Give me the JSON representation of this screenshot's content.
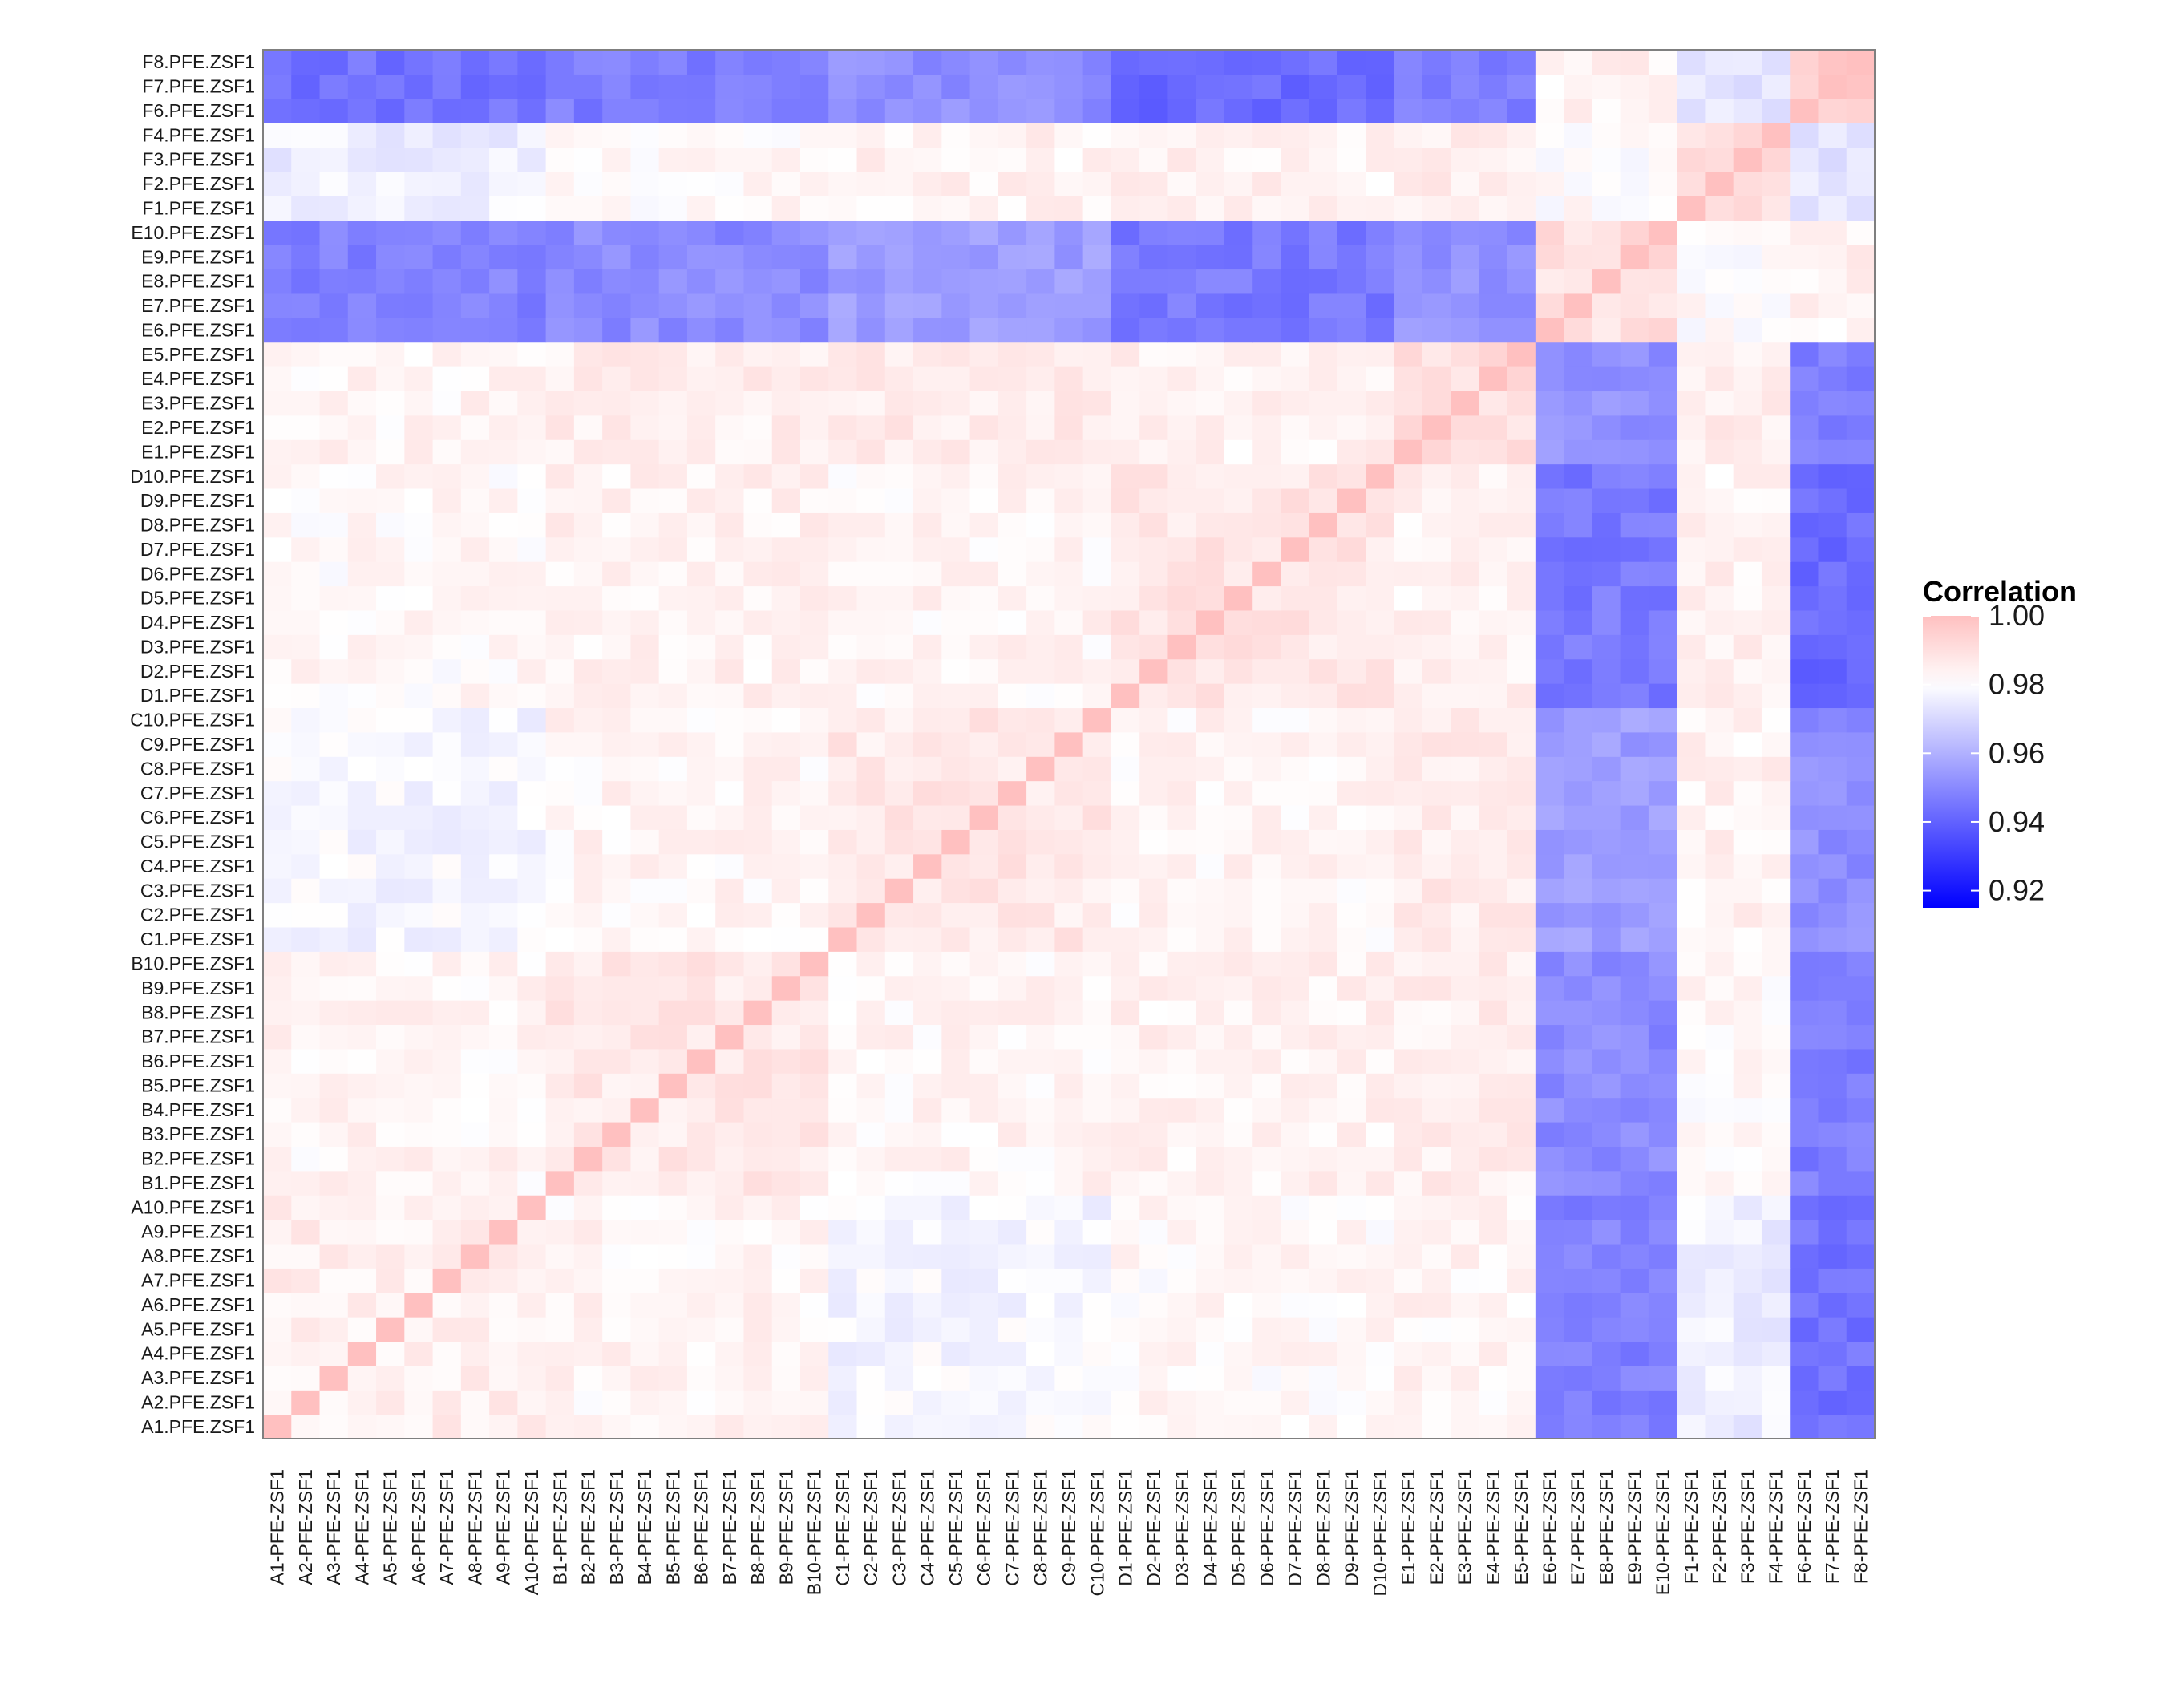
{
  "chart_data": {
    "type": "heatmap",
    "title": "",
    "xlabel": "",
    "ylabel": "",
    "labels": [
      "A1.PFE.ZSF1",
      "A2.PFE.ZSF1",
      "A3.PFE.ZSF1",
      "A4.PFE.ZSF1",
      "A5.PFE.ZSF1",
      "A6.PFE.ZSF1",
      "A7.PFE.ZSF1",
      "A8.PFE.ZSF1",
      "A9.PFE.ZSF1",
      "A10.PFE.ZSF1",
      "B1.PFE.ZSF1",
      "B2.PFE.ZSF1",
      "B3.PFE.ZSF1",
      "B4.PFE.ZSF1",
      "B5.PFE.ZSF1",
      "B6.PFE.ZSF1",
      "B7.PFE.ZSF1",
      "B8.PFE.ZSF1",
      "B9.PFE.ZSF1",
      "B10.PFE.ZSF1",
      "C1.PFE.ZSF1",
      "C2.PFE.ZSF1",
      "C3.PFE.ZSF1",
      "C4.PFE.ZSF1",
      "C5.PFE.ZSF1",
      "C6.PFE.ZSF1",
      "C7.PFE.ZSF1",
      "C8.PFE.ZSF1",
      "C9.PFE.ZSF1",
      "C10.PFE.ZSF1",
      "D1.PFE.ZSF1",
      "D2.PFE.ZSF1",
      "D3.PFE.ZSF1",
      "D4.PFE.ZSF1",
      "D5.PFE.ZSF1",
      "D6.PFE.ZSF1",
      "D7.PFE.ZSF1",
      "D8.PFE.ZSF1",
      "D9.PFE.ZSF1",
      "D10.PFE.ZSF1",
      "E1.PFE.ZSF1",
      "E2.PFE.ZSF1",
      "E3.PFE.ZSF1",
      "E4.PFE.ZSF1",
      "E5.PFE.ZSF1",
      "E6.PFE.ZSF1",
      "E7.PFE.ZSF1",
      "E8.PFE.ZSF1",
      "E9.PFE.ZSF1",
      "E10.PFE.ZSF1",
      "F1.PFE.ZSF1",
      "F2.PFE.ZSF1",
      "F3.PFE.ZSF1",
      "F4.PFE.ZSF1",
      "F6.PFE.ZSF1",
      "F7.PFE.ZSF1",
      "F8.PFE.ZSF1"
    ],
    "x_tick_labels": [
      "A1-PFE-ZSF1",
      "A2-PFE-ZSF1",
      "A3-PFE-ZSF1",
      "A4-PFE-ZSF1",
      "A5-PFE-ZSF1",
      "A6-PFE-ZSF1",
      "A7-PFE-ZSF1",
      "A8-PFE-ZSF1",
      "A9-PFE-ZSF1",
      "A10-PFE-ZSF1",
      "B1-PFE-ZSF1",
      "B2-PFE-ZSF1",
      "B3-PFE-ZSF1",
      "B4-PFE-ZSF1",
      "B5-PFE-ZSF1",
      "B6-PFE-ZSF1",
      "B7-PFE-ZSF1",
      "B8-PFE-ZSF1",
      "B9-PFE-ZSF1",
      "B10-PFE-ZSF1",
      "C1-PFE-ZSF1",
      "C2-PFE-ZSF1",
      "C3-PFE-ZSF1",
      "C4-PFE-ZSF1",
      "C5-PFE-ZSF1",
      "C6-PFE-ZSF1",
      "C7-PFE-ZSF1",
      "C8-PFE-ZSF1",
      "C9-PFE-ZSF1",
      "C10-PFE-ZSF1",
      "D1-PFE-ZSF1",
      "D2-PFE-ZSF1",
      "D3-PFE-ZSF1",
      "D4-PFE-ZSF1",
      "D5-PFE-ZSF1",
      "D6-PFE-ZSF1",
      "D7-PFE-ZSF1",
      "D8-PFE-ZSF1",
      "D9-PFE-ZSF1",
      "D10-PFE-ZSF1",
      "E1-PFE-ZSF1",
      "E2-PFE-ZSF1",
      "E3-PFE-ZSF1",
      "E4-PFE-ZSF1",
      "E5-PFE-ZSF1",
      "E6-PFE-ZSF1",
      "E7-PFE-ZSF1",
      "E8-PFE-ZSF1",
      "E9-PFE-ZSF1",
      "E10-PFE-ZSF1",
      "F1-PFE-ZSF1",
      "F2-PFE-ZSF1",
      "F3-PFE-ZSF1",
      "F4-PFE-ZSF1",
      "F6-PFE-ZSF1",
      "F7-PFE-ZSF1",
      "F8-PFE-ZSF1"
    ],
    "value_range": [
      0.915,
      1.0
    ],
    "legend": {
      "title": "Correlation",
      "placement": "right",
      "ticks": [
        1.0,
        0.98,
        0.96,
        0.94,
        0.92
      ],
      "tick_labels": [
        "1.00",
        "0.98",
        "0.96",
        "0.94",
        "0.92"
      ]
    },
    "colors": {
      "low": "#0000ff",
      "mid": "#ffffff",
      "high": "#ffc0c0",
      "mid_value": 0.98,
      "panel_border": "#7f7f7f"
    },
    "group_mean_correlation": {
      "groups": [
        "A",
        "B",
        "C",
        "D",
        "E1-E5",
        "E6-E10",
        "F1-F4",
        "F6-F8"
      ],
      "values": [
        [
          0.985,
          0.983,
          0.978,
          0.982,
          0.983,
          0.948,
          0.976,
          0.944
        ],
        [
          0.983,
          0.987,
          0.983,
          0.984,
          0.985,
          0.95,
          0.982,
          0.947
        ],
        [
          0.978,
          0.983,
          0.987,
          0.983,
          0.986,
          0.955,
          0.984,
          0.951
        ],
        [
          0.982,
          0.984,
          0.983,
          0.988,
          0.984,
          0.946,
          0.984,
          0.942
        ],
        [
          0.983,
          0.985,
          0.986,
          0.984,
          0.99,
          0.952,
          0.985,
          0.948
        ],
        [
          0.948,
          0.95,
          0.955,
          0.946,
          0.952,
          0.99,
          0.981,
          0.984
        ],
        [
          0.976,
          0.982,
          0.984,
          0.984,
          0.985,
          0.981,
          0.99,
          0.974
        ],
        [
          0.944,
          0.947,
          0.951,
          0.942,
          0.948,
          0.984,
          0.974,
          0.995
        ]
      ]
    }
  }
}
